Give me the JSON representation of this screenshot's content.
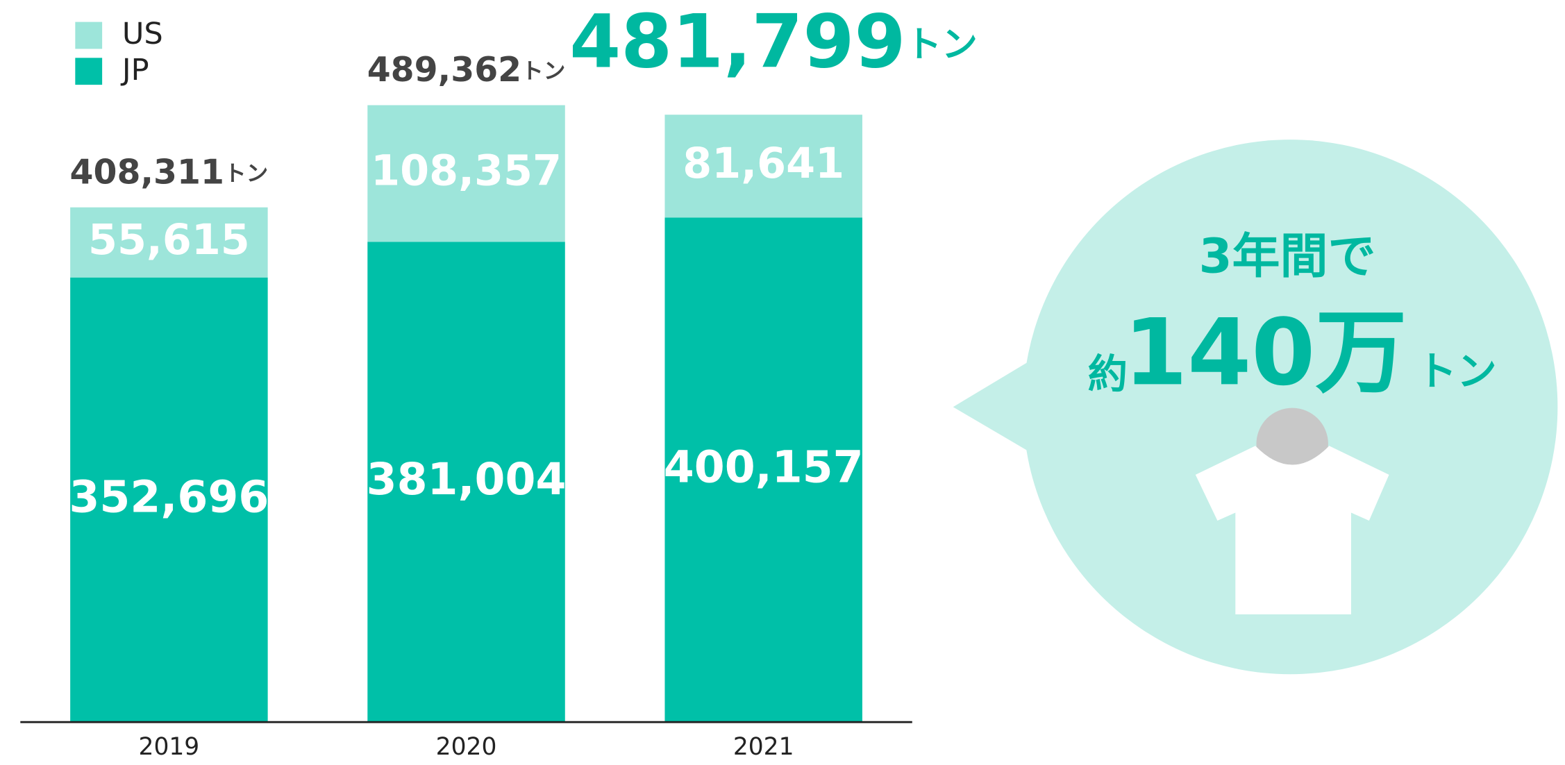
{
  "chart_data": {
    "type": "stacked-bar",
    "categories": [
      "2019",
      "2020",
      "2021"
    ],
    "series": [
      {
        "name": "JP",
        "color": "#00c0a8",
        "values": [
          352696,
          381004,
          400157
        ],
        "value_labels": [
          "352,696",
          "381,004",
          "400,157"
        ]
      },
      {
        "name": "US",
        "color": "#9de5da",
        "values": [
          55615,
          108357,
          81641
        ],
        "value_labels": [
          "55,615",
          "108,357",
          "81,641"
        ]
      }
    ],
    "totals": [
      408311,
      489362,
      481799
    ],
    "total_labels": [
      "408,311",
      "489,362",
      "481,799"
    ],
    "unit": "トン",
    "ylim": [
      0,
      500000
    ],
    "callout": {
      "line1": "3年間で",
      "prefix": "約",
      "amount": "140万",
      "unit": "トン"
    }
  }
}
